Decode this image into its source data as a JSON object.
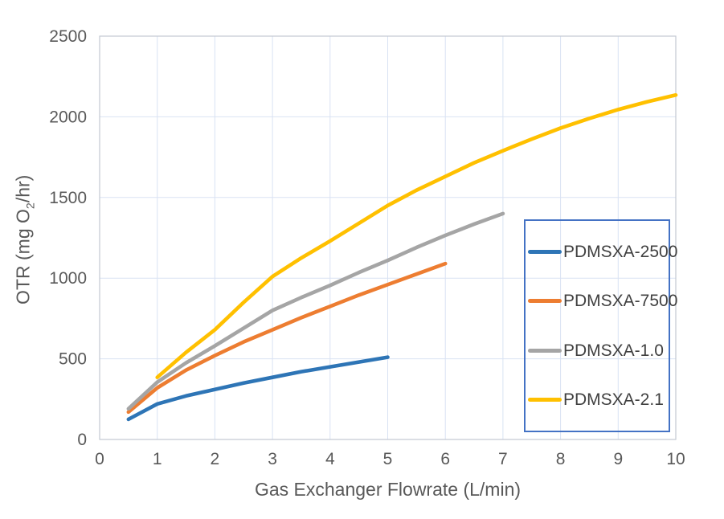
{
  "chart_data": {
    "type": "line",
    "title": "",
    "xlabel": "Gas Exchanger Flowrate (L/min)",
    "ylabel": "OTR (mg O2/hr)",
    "ylabel_parts": {
      "pre": "OTR (mg O",
      "sub": "2",
      "post": "/hr)"
    },
    "xlim": [
      0,
      10
    ],
    "ylim": [
      0,
      2500
    ],
    "grid": true,
    "legend_position": "inside-right",
    "x_ticks": [
      {
        "v": 0,
        "label": "0"
      },
      {
        "v": 1,
        "label": "1"
      },
      {
        "v": 2,
        "label": "2"
      },
      {
        "v": 3,
        "label": "3"
      },
      {
        "v": 4,
        "label": "4"
      },
      {
        "v": 5,
        "label": "5"
      },
      {
        "v": 6,
        "label": "6"
      },
      {
        "v": 7,
        "label": "7"
      },
      {
        "v": 8,
        "label": "8"
      },
      {
        "v": 9,
        "label": "9"
      },
      {
        "v": 10,
        "label": "10"
      }
    ],
    "y_ticks": [
      {
        "v": 0,
        "label": "0"
      },
      {
        "v": 500,
        "label": "500"
      },
      {
        "v": 1000,
        "label": "1000"
      },
      {
        "v": 1500,
        "label": "1500"
      },
      {
        "v": 2000,
        "label": "2000"
      },
      {
        "v": 2500,
        "label": "2500"
      }
    ],
    "x_gridlines": [
      1,
      2,
      3,
      4,
      5,
      6,
      7,
      8,
      9,
      10
    ],
    "y_gridlines": [
      500,
      1000,
      1500,
      2000,
      2500
    ],
    "series": [
      {
        "name": "PDMSXA-2500",
        "color": "#2E75B6",
        "x": [
          0.5,
          1,
          1.5,
          2,
          2.5,
          3,
          3.5,
          4,
          4.5,
          5
        ],
        "y": [
          125,
          220,
          270,
          310,
          350,
          385,
          420,
          450,
          480,
          510
        ]
      },
      {
        "name": "PDMSXA-7500",
        "color": "#ED7D31",
        "x": [
          0.5,
          1,
          1.5,
          2,
          2.5,
          3,
          3.5,
          4,
          4.5,
          5,
          5.5,
          6
        ],
        "y": [
          170,
          320,
          430,
          520,
          605,
          680,
          755,
          825,
          895,
          960,
          1025,
          1090
        ]
      },
      {
        "name": "PDMSXA-1.0",
        "color": "#A5A5A5",
        "x": [
          0.5,
          1,
          1.5,
          2,
          2.5,
          3,
          3.5,
          4,
          4.5,
          5,
          5.5,
          6,
          6.5,
          7
        ],
        "y": [
          190,
          355,
          475,
          580,
          690,
          800,
          880,
          955,
          1035,
          1110,
          1190,
          1265,
          1335,
          1400
        ]
      },
      {
        "name": "PDMSXA-2.1",
        "color": "#FFC000",
        "x": [
          1,
          1.5,
          2,
          2.5,
          3,
          3.5,
          4,
          4.5,
          5,
          5.5,
          6,
          6.5,
          7,
          7.5,
          8,
          8.5,
          9,
          9.5,
          10
        ],
        "y": [
          385,
          540,
          680,
          850,
          1010,
          1125,
          1230,
          1340,
          1450,
          1545,
          1630,
          1715,
          1790,
          1862,
          1930,
          1990,
          2045,
          2093,
          2135
        ]
      }
    ],
    "colors": {
      "gridline": "#d9e2f3",
      "plot_border": "#c3c9d2",
      "tick_label": "#595959",
      "axis_title": "#595959",
      "legend_border": "#4472C4",
      "legend_text": "#404040",
      "background": "#ffffff"
    }
  }
}
